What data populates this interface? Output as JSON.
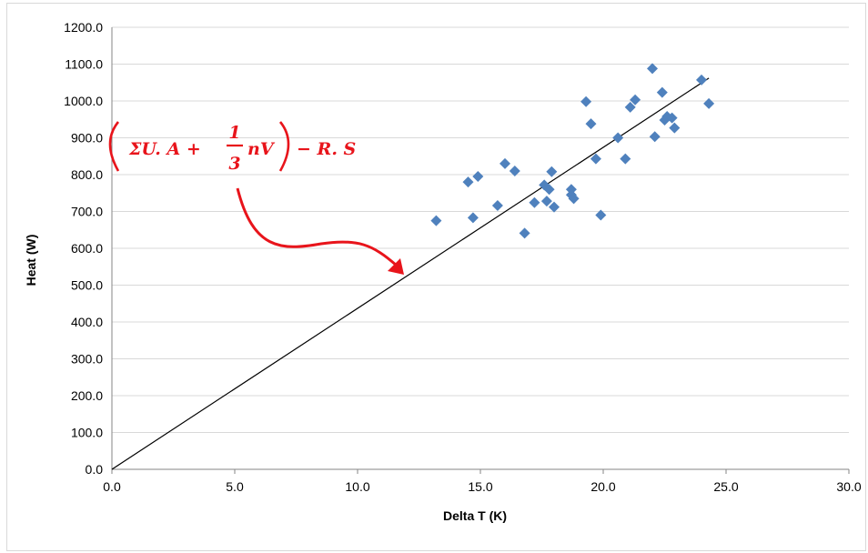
{
  "chart_data": {
    "type": "scatter",
    "title": "",
    "xlabel": "Delta T (K)",
    "ylabel": "Heat (W)",
    "xlim": [
      0,
      30
    ],
    "ylim": [
      0,
      1200
    ],
    "x_ticks": [
      "0.0",
      "5.0",
      "10.0",
      "15.0",
      "20.0",
      "25.0",
      "30.0"
    ],
    "y_ticks": [
      "0.0",
      "100.0",
      "200.0",
      "300.0",
      "400.0",
      "500.0",
      "600.0",
      "700.0",
      "800.0",
      "900.0",
      "1000.0",
      "1100.0",
      "1200.0"
    ],
    "grid": "horizontal",
    "legend": "none",
    "series": [
      {
        "marker": "diamond",
        "color": "#4f81bd",
        "points": [
          [
            13.2,
            675
          ],
          [
            14.5,
            780
          ],
          [
            14.7,
            683
          ],
          [
            14.9,
            795
          ],
          [
            15.7,
            716
          ],
          [
            16.0,
            830
          ],
          [
            16.4,
            810
          ],
          [
            16.8,
            641
          ],
          [
            17.2,
            724
          ],
          [
            17.6,
            772
          ],
          [
            17.7,
            728
          ],
          [
            17.8,
            760
          ],
          [
            17.9,
            808
          ],
          [
            18.0,
            712
          ],
          [
            18.7,
            760
          ],
          [
            18.7,
            745
          ],
          [
            18.8,
            735
          ],
          [
            19.3,
            998
          ],
          [
            19.5,
            938
          ],
          [
            19.7,
            843
          ],
          [
            19.9,
            690
          ],
          [
            20.6,
            900
          ],
          [
            20.9,
            843
          ],
          [
            21.1,
            983
          ],
          [
            21.3,
            1003
          ],
          [
            22.0,
            1088
          ],
          [
            22.1,
            903
          ],
          [
            22.4,
            1023
          ],
          [
            22.5,
            948
          ],
          [
            22.6,
            958
          ],
          [
            22.8,
            954
          ],
          [
            22.9,
            927
          ],
          [
            24.0,
            1057
          ],
          [
            24.3,
            993
          ]
        ]
      }
    ],
    "trendline": {
      "x": [
        0,
        24.3
      ],
      "y": [
        0,
        1062
      ],
      "color": "#000000"
    },
    "annotation": {
      "lead": "ΣU. A + ",
      "frac_num": "1",
      "frac_den": "3",
      "mid": "nV",
      "tail": " − R. S",
      "color": "#e8141b"
    }
  }
}
